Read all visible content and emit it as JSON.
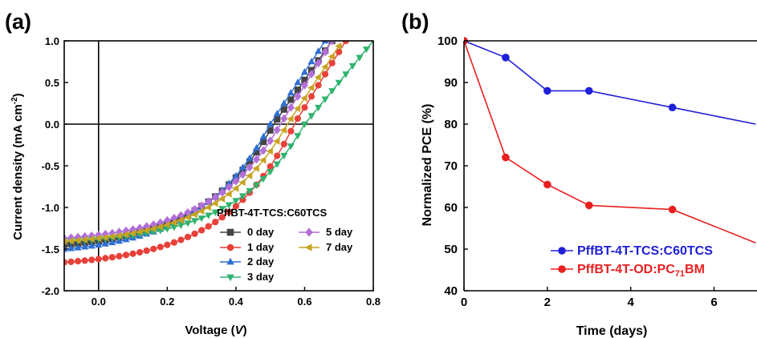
{
  "chart_data": [
    {
      "panel": "(a)",
      "type": "line",
      "xlabel": "Voltage (V)",
      "xlabel_main": "Voltage (",
      "xlabel_italic": "V",
      "xlabel_end": ")",
      "ylabel": "Current density (mA cm-2)",
      "ylabel_main": "Current density (mA cm",
      "ylabel_sup": "-2",
      "ylabel_end": ")",
      "xlim": [
        -0.1,
        0.8
      ],
      "ylim": [
        -2.0,
        1.0
      ],
      "xticks": [
        "0.0",
        "0.2",
        "0.4",
        "0.6",
        "0.8"
      ],
      "xtick_values": [
        0.0,
        0.2,
        0.4,
        0.6,
        0.8
      ],
      "yticks": [
        "-2.0",
        "-1.5",
        "-1.0",
        "-0.5",
        "0.0",
        "0.5",
        "1.0"
      ],
      "ytick_values": [
        -2.0,
        -1.5,
        -1.0,
        -0.5,
        0.0,
        0.5,
        1.0
      ],
      "legend_title": "PffBT-4T-TCS:C60TCS",
      "legend_position": "lower-right",
      "series": [
        {
          "name": "0 day",
          "color": "#444444",
          "marker": "square",
          "jsc": -1.4,
          "v0": 0.51,
          "vend": 0.68
        },
        {
          "name": "1 day",
          "color": "#e8413a",
          "marker": "circle",
          "jsc": -1.62,
          "v0": 0.57,
          "vend": 0.72
        },
        {
          "name": "2 day",
          "color": "#2f6fd1",
          "marker": "triangle-up",
          "jsc": -1.45,
          "v0": 0.5,
          "vend": 0.66
        },
        {
          "name": "3 day",
          "color": "#2fb36e",
          "marker": "triangle-down",
          "jsc": -1.38,
          "v0": 0.6,
          "vend": 0.8
        },
        {
          "name": "5 day",
          "color": "#b26fd8",
          "marker": "diamond",
          "jsc": -1.33,
          "v0": 0.53,
          "vend": 0.68
        },
        {
          "name": "7 day",
          "color": "#c8a322",
          "marker": "triangle-left",
          "jsc": -1.37,
          "v0": 0.55,
          "vend": 0.71
        }
      ]
    },
    {
      "panel": "(b)",
      "type": "line",
      "xlabel": "Time (days)",
      "ylabel": "Normalized PCE (%)",
      "xlim": [
        0,
        7
      ],
      "ylim": [
        40,
        100
      ],
      "xticks": [
        "0",
        "2",
        "4",
        "6"
      ],
      "xtick_values": [
        0,
        2,
        4,
        6
      ],
      "yticks": [
        "40",
        "50",
        "60",
        "70",
        "80",
        "90",
        "100"
      ],
      "ytick_values": [
        40,
        50,
        60,
        70,
        80,
        90,
        100
      ],
      "legend_position": "lower-right",
      "series": [
        {
          "name": "PffBT-4T-TCS:C60TCS",
          "name_main": "PffBT-4T-TCS:C60TCS",
          "color": "#2020d8",
          "x": [
            0,
            1,
            2,
            3,
            5,
            7
          ],
          "y": [
            100,
            96,
            88,
            88,
            84,
            80
          ]
        },
        {
          "name": "PffBT-4T-OD:PC71BM",
          "name_main": "PffBT-4T-OD:PC",
          "name_sub": "71",
          "name_end": "BM",
          "color": "#e82020",
          "x": [
            0,
            1,
            2,
            3,
            5,
            7
          ],
          "y": [
            100,
            72,
            65.5,
            60.5,
            59.5,
            51.5
          ]
        }
      ]
    }
  ]
}
